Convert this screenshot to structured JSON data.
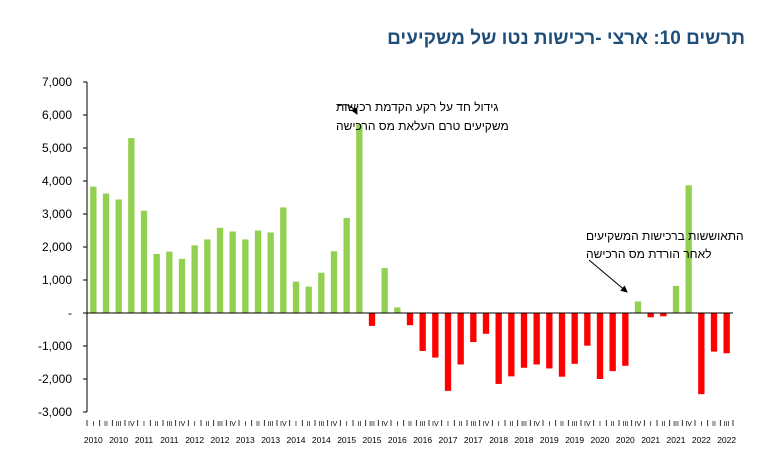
{
  "title": "תרשים 10: ארצי -רכישות נטו של משקיעים",
  "chart_data": {
    "type": "bar",
    "ylim": [
      -3000,
      7000
    ],
    "yticks": [
      "7,000",
      "6,000",
      "5,000",
      "4,000",
      "3,000",
      "2,000",
      "1,000",
      "-",
      "-1,000",
      "-2,000",
      "-3,000"
    ],
    "ytick_values": [
      7000,
      6000,
      5000,
      4000,
      3000,
      2000,
      1000,
      0,
      -1000,
      -2000,
      -3000
    ],
    "quarter_labels": [
      "I",
      "II",
      "III",
      "IV"
    ],
    "year_labels": [
      "2010",
      "2010",
      "2011",
      "2011",
      "2012",
      "2012",
      "2013",
      "2013",
      "2014",
      "2014",
      "2015",
      "2015",
      "2016",
      "2016",
      "2017",
      "2017",
      "2018",
      "2018",
      "2019",
      "2019",
      "2020",
      "2020",
      "2021",
      "2021",
      "2022",
      "2022"
    ],
    "positive_color": "#92d050",
    "negative_color": "#ff0000",
    "values": [
      3830,
      3620,
      3440,
      5300,
      3100,
      1790,
      1860,
      1640,
      2050,
      2230,
      2580,
      2470,
      2230,
      2500,
      2440,
      3200,
      950,
      800,
      1220,
      1870,
      2880,
      5720,
      -390,
      1360,
      170,
      -370,
      -1150,
      -1350,
      -2360,
      -1560,
      -880,
      -630,
      -2150,
      -1920,
      -1660,
      -1560,
      -1680,
      -1930,
      -1540,
      -990,
      -2000,
      -1760,
      -1600,
      350,
      -130,
      -100,
      820,
      3870,
      -2460,
      -1170,
      -1220
    ],
    "annotations": [
      {
        "lines": [
          "גידול  חד על רקע הקדמת רכישות",
          "משקיעים טרם העלאת מס הרכישה"
        ]
      },
      {
        "lines": [
          "התאוששות ברכישות המשקיעים",
          "לאחר הורדת מס הרכישה"
        ]
      }
    ]
  }
}
